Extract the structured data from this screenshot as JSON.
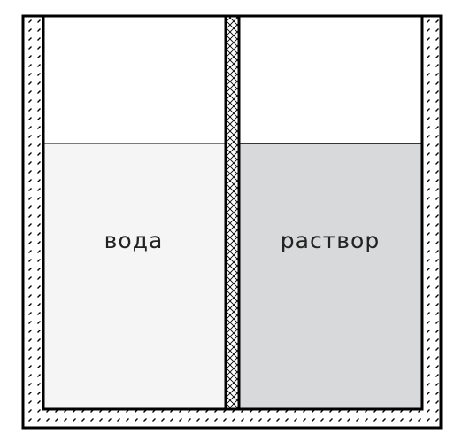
{
  "left_compartment": {
    "label": "вода",
    "fill_color": "#f4f5f4"
  },
  "right_compartment": {
    "label": "раствор",
    "fill_color": "#d8d9da"
  },
  "colors": {
    "outline": "#000000",
    "wall_background": "#ffffff",
    "empty_space": "#ffffff"
  }
}
